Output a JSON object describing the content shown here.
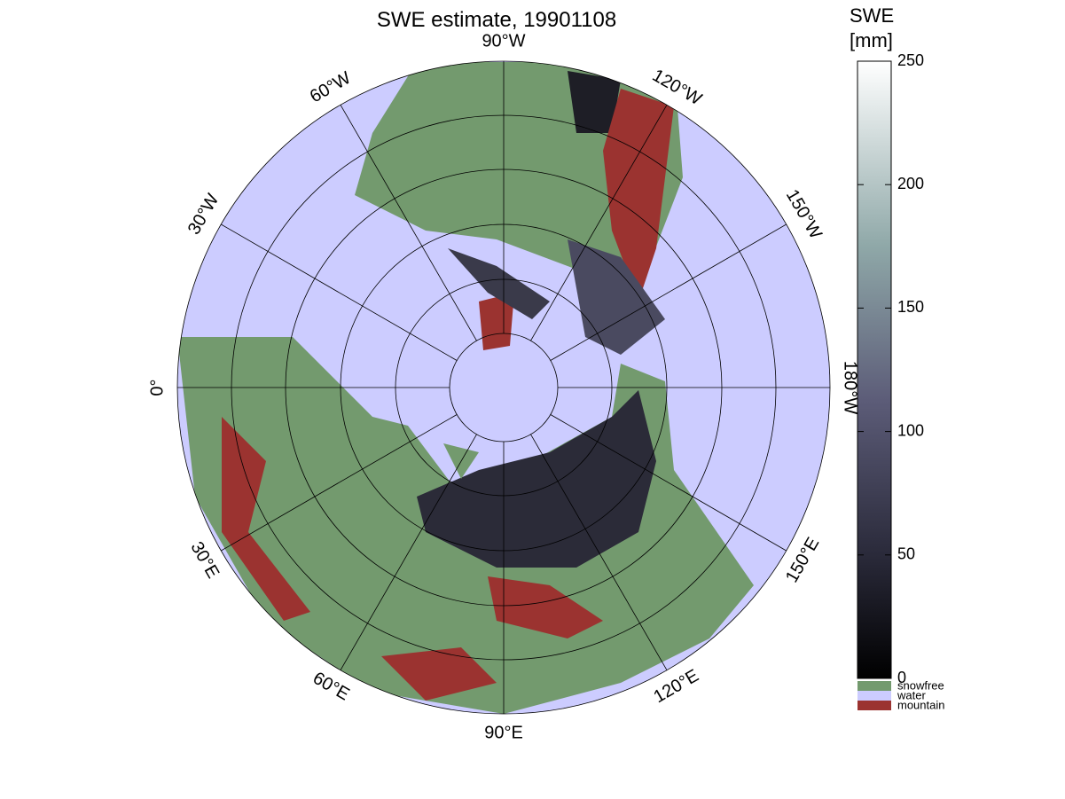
{
  "title": "SWE estimate, 19901108",
  "map": {
    "longitude_labels": [
      "0°",
      "30°W",
      "60°W",
      "90°W",
      "120°W",
      "150°W",
      "180°W",
      "150°E",
      "120°E",
      "90°E",
      "60°E",
      "30°E"
    ]
  },
  "colorbar": {
    "title_lines": [
      "SWE",
      "[mm]"
    ],
    "lim": [
      0,
      250
    ],
    "ticks": [
      0,
      50,
      100,
      150,
      200,
      250
    ],
    "legend": [
      {
        "label": "snowfree",
        "color": "#739a6e"
      },
      {
        "label": "water",
        "color": "#ccccff"
      },
      {
        "label": "mountain",
        "color": "#9b3330"
      }
    ]
  }
}
